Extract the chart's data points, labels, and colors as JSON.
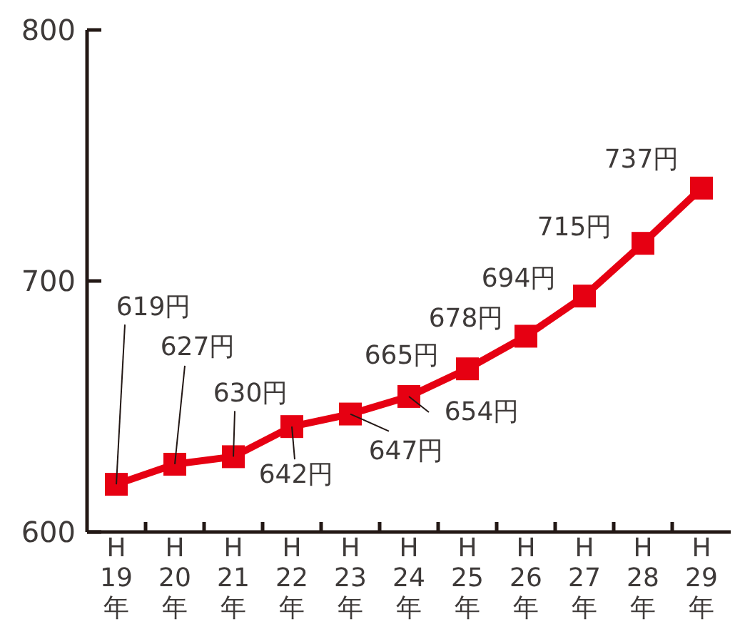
{
  "chart_data": {
    "type": "line",
    "categories": [
      "H\n19\n年",
      "H\n20\n年",
      "H\n21\n年",
      "H\n22\n年",
      "H\n23\n年",
      "H\n24\n年",
      "H\n25\n年",
      "H\n26\n年",
      "H\n27\n年",
      "H\n28\n年",
      "H\n29\n年"
    ],
    "series": [
      {
        "color": "#e60012",
        "values": [
          619,
          627,
          630,
          642,
          647,
          654,
          665,
          678,
          694,
          715,
          737
        ],
        "value_labels": [
          "619円",
          "627円",
          "630円",
          "642円",
          "647円",
          "654円",
          "665円",
          "678円",
          "694円",
          "715円",
          "737円"
        ]
      }
    ],
    "ylim": [
      600,
      800
    ],
    "yticks": [
      600,
      700,
      800
    ],
    "grid": false,
    "marker": "square",
    "line_style": "solid"
  }
}
